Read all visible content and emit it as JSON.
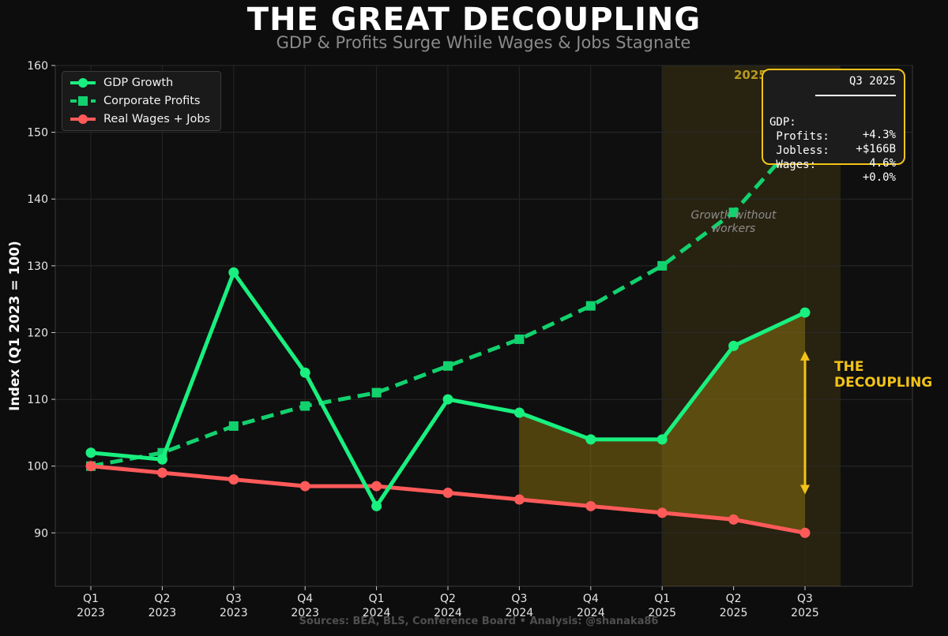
{
  "title": "THE GREAT DECOUPLING",
  "subtitle": "GDP & Profits Surge While Wages & Jobs Stagnate",
  "source_note": "Sources: BEA, BLS, Conference Board  •  Analysis: @shanaka86",
  "colors": {
    "background": "#0d0d0d",
    "gdp": "#19f07f",
    "profits": "#12d26e",
    "wages": "#ff5a5a",
    "highlight": "#f2c319"
  },
  "annotations": {
    "year_label": "2025",
    "growth_note": [
      "Growth without",
      "workers"
    ],
    "decoupling": [
      "THE",
      "DECOUPLING"
    ]
  },
  "infobox": {
    "title": "Q3 2025",
    "rows": [
      {
        "key": "GDP:",
        "value": "+4.3%"
      },
      {
        "key": " Profits:",
        "value": "+$166B"
      },
      {
        "key": " Jobless:",
        "value": "4.6%"
      },
      {
        "key": " Wages:",
        "value": "+0.0%"
      }
    ]
  },
  "chart_data": {
    "type": "line",
    "ylabel": "Index (Q1 2023 = 100)",
    "xlabel": "",
    "ylim": [
      82,
      160
    ],
    "yticks": [
      90,
      100,
      110,
      120,
      130,
      140,
      150,
      160
    ],
    "grid": true,
    "legend_position": "top-left",
    "categories": [
      [
        "Q1",
        "2023"
      ],
      [
        "Q2",
        "2023"
      ],
      [
        "Q3",
        "2023"
      ],
      [
        "Q4",
        "2023"
      ],
      [
        "Q1",
        "2024"
      ],
      [
        "Q2",
        "2024"
      ],
      [
        "Q3",
        "2024"
      ],
      [
        "Q4",
        "2024"
      ],
      [
        "Q1",
        "2025"
      ],
      [
        "Q2",
        "2025"
      ],
      [
        "Q3",
        "2025"
      ]
    ],
    "series": [
      {
        "name": "GDP Growth",
        "style": "solid",
        "marker": "circle",
        "color": "#19f07f",
        "values": [
          102,
          101,
          129,
          114,
          94,
          110,
          108,
          104,
          104,
          118,
          123
        ]
      },
      {
        "name": "Corporate Profits",
        "style": "dashed",
        "marker": "square",
        "color": "#12d26e",
        "values": [
          100,
          102,
          106,
          109,
          111,
          115,
          119,
          124,
          130,
          138,
          150
        ]
      },
      {
        "name": "Real Wages + Jobs",
        "style": "solid",
        "marker": "circle",
        "color": "#ff5a5a",
        "values": [
          100,
          99,
          98,
          97,
          97,
          96,
          95,
          94,
          93,
          92,
          90
        ]
      }
    ],
    "shaded_gap": {
      "from_index": 6,
      "to_index": 10,
      "between": [
        "GDP Growth",
        "Real Wages + Jobs"
      ]
    },
    "highlight_region": {
      "from": "Q1 2025",
      "label": "2025"
    },
    "decoupling_arrow": {
      "at_index": 10,
      "from_value": 96,
      "to_value": 117
    }
  }
}
